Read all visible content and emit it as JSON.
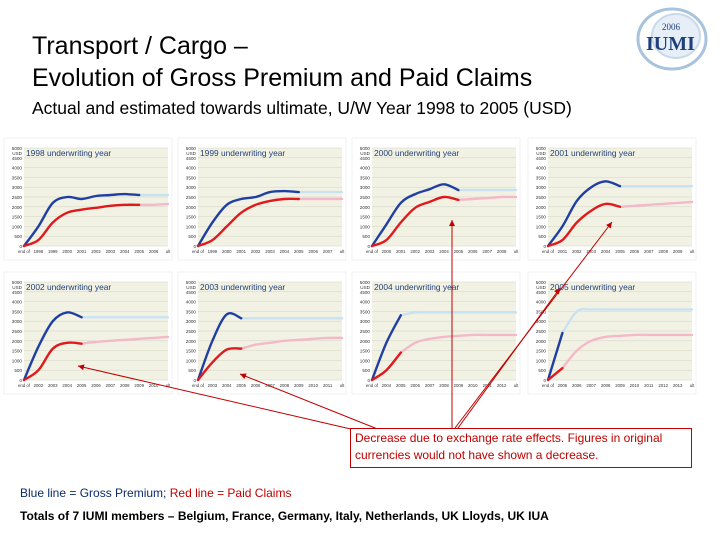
{
  "header": {
    "title_line1": "Transport / Cargo –",
    "title_line2": "Evolution of Gross Premium and Paid Claims",
    "subtitle": "Actual and estimated towards ultimate, U/W Year 1998 to 2005 (USD)"
  },
  "logo": {
    "year": "2006",
    "name": "IUMI"
  },
  "colors": {
    "gross_premium": "#1f3fa3",
    "paid_claims": "#e0191c",
    "gross_premium_estimate": "#c9e2f2",
    "paid_claims_estimate": "#f5b8c8",
    "panel_bg": "#f2f2e4",
    "callout": "#c00000"
  },
  "chart_data": [
    {
      "type": "line",
      "title": "1998 underwriting year",
      "yunit": "USD",
      "ylim": [
        0,
        5000
      ],
      "ticks": [
        0,
        500,
        1000,
        1500,
        2000,
        2500,
        3000,
        3500,
        4000,
        4500,
        5000
      ],
      "x": [
        "end of",
        "1998",
        "1999",
        "2000",
        "2001",
        "2002",
        "2003",
        "2004",
        "2005",
        "2006",
        "ult"
      ],
      "actual_until": "2005",
      "series": [
        {
          "name": "Gross Premium",
          "values": [
            0,
            1000,
            2200,
            2500,
            2400,
            2550,
            2600,
            2650,
            2600,
            2600,
            2600
          ]
        },
        {
          "name": "Paid Claims",
          "values": [
            0,
            300,
            1200,
            1700,
            1850,
            1950,
            2050,
            2100,
            2100,
            2100,
            2150
          ]
        }
      ]
    },
    {
      "type": "line",
      "title": "1999 underwriting year",
      "yunit": "USD",
      "ylim": [
        0,
        5000
      ],
      "ticks": [
        0,
        500,
        1000,
        1500,
        2000,
        2500,
        3000,
        3500,
        4000,
        4500,
        5000
      ],
      "x": [
        "end of",
        "1999",
        "2000",
        "2001",
        "2002",
        "2003",
        "2004",
        "2005",
        "2006",
        "2007",
        "ult"
      ],
      "actual_until": "2005",
      "series": [
        {
          "name": "Gross Premium",
          "values": [
            0,
            1200,
            2100,
            2400,
            2500,
            2750,
            2800,
            2750,
            2750,
            2750,
            2750
          ]
        },
        {
          "name": "Paid Claims",
          "values": [
            0,
            300,
            1000,
            1700,
            2100,
            2300,
            2400,
            2400,
            2400,
            2400,
            2400
          ]
        }
      ]
    },
    {
      "type": "line",
      "title": "2000 underwriting year",
      "yunit": "USD",
      "ylim": [
        0,
        5000
      ],
      "ticks": [
        0,
        500,
        1000,
        1500,
        2000,
        2500,
        3000,
        3500,
        4000,
        4500,
        5000
      ],
      "x": [
        "end of",
        "2000",
        "2001",
        "2002",
        "2003",
        "2004",
        "2005",
        "2006",
        "2007",
        "2008",
        "ult"
      ],
      "actual_until": "2005",
      "series": [
        {
          "name": "Gross Premium",
          "values": [
            0,
            1100,
            2200,
            2650,
            2900,
            3150,
            2850,
            2850,
            2850,
            2850,
            2850
          ]
        },
        {
          "name": "Paid Claims",
          "values": [
            0,
            300,
            1200,
            1950,
            2250,
            2500,
            2350,
            2400,
            2450,
            2500,
            2500
          ]
        }
      ]
    },
    {
      "type": "line",
      "title": "2001 underwriting year",
      "yunit": "USD",
      "ylim": [
        0,
        5000
      ],
      "ticks": [
        0,
        500,
        1000,
        1500,
        2000,
        2500,
        3000,
        3500,
        4000,
        4500,
        5000
      ],
      "x": [
        "end of",
        "2001",
        "2002",
        "2003",
        "2004",
        "2005",
        "2006",
        "2007",
        "2008",
        "2009",
        "ult"
      ],
      "actual_until": "2005",
      "series": [
        {
          "name": "Gross Premium",
          "values": [
            0,
            1000,
            2300,
            3000,
            3300,
            3050,
            3050,
            3050,
            3050,
            3050,
            3050
          ]
        },
        {
          "name": "Paid Claims",
          "values": [
            0,
            300,
            1200,
            1800,
            2150,
            2000,
            2050,
            2100,
            2150,
            2200,
            2250
          ]
        }
      ]
    },
    {
      "type": "line",
      "title": "2002 underwriting year",
      "yunit": "USD",
      "ylim": [
        0,
        5000
      ],
      "ticks": [
        0,
        500,
        1000,
        1500,
        2000,
        2500,
        3000,
        3500,
        4000,
        4500,
        5000
      ],
      "x": [
        "end of",
        "2002",
        "2003",
        "2004",
        "2005",
        "2006",
        "2007",
        "2008",
        "2009",
        "2010",
        "ult"
      ],
      "actual_until": "2005",
      "series": [
        {
          "name": "Gross Premium",
          "values": [
            0,
            1700,
            3000,
            3450,
            3200,
            3200,
            3200,
            3200,
            3200,
            3200,
            3200
          ]
        },
        {
          "name": "Paid Claims",
          "values": [
            0,
            500,
            1600,
            1900,
            1850,
            1950,
            2000,
            2050,
            2100,
            2150,
            2200
          ]
        }
      ]
    },
    {
      "type": "line",
      "title": "2003 underwriting year",
      "yunit": "USD",
      "ylim": [
        0,
        5000
      ],
      "ticks": [
        0,
        500,
        1000,
        1500,
        2000,
        2500,
        3000,
        3500,
        4000,
        4500,
        5000
      ],
      "x": [
        "end of",
        "2003",
        "2004",
        "2005",
        "2006",
        "2007",
        "2008",
        "2009",
        "2010",
        "2011",
        "ult"
      ],
      "actual_until": "2005",
      "series": [
        {
          "name": "Gross Premium",
          "values": [
            0,
            2000,
            3350,
            3150,
            3150,
            3150,
            3150,
            3150,
            3150,
            3150,
            3150
          ]
        },
        {
          "name": "Paid Claims",
          "values": [
            0,
            900,
            1550,
            1600,
            1800,
            1900,
            2000,
            2050,
            2100,
            2150,
            2150
          ]
        }
      ]
    },
    {
      "type": "line",
      "title": "2004 underwriting year",
      "yunit": "USD",
      "ylim": [
        0,
        5000
      ],
      "ticks": [
        0,
        500,
        1000,
        1500,
        2000,
        2500,
        3000,
        3500,
        4000,
        4500,
        5000
      ],
      "x": [
        "end of",
        "2004",
        "2005",
        "2006",
        "2007",
        "2008",
        "2009",
        "2010",
        "2011",
        "2012",
        "ult"
      ],
      "actual_until": "2005",
      "series": [
        {
          "name": "Gross Premium",
          "values": [
            0,
            1900,
            3300,
            3450,
            3450,
            3450,
            3450,
            3450,
            3450,
            3450,
            3450
          ]
        },
        {
          "name": "Paid Claims",
          "values": [
            0,
            500,
            1400,
            1900,
            2100,
            2200,
            2250,
            2300,
            2300,
            2300,
            2300
          ]
        }
      ]
    },
    {
      "type": "line",
      "title": "2005 underwriting year",
      "yunit": "USD",
      "ylim": [
        0,
        5000
      ],
      "ticks": [
        0,
        500,
        1000,
        1500,
        2000,
        2500,
        3000,
        3500,
        4000,
        4500,
        5000
      ],
      "x": [
        "end of",
        "2005",
        "2006",
        "2007",
        "2008",
        "2009",
        "2010",
        "2011",
        "2012",
        "2013",
        "ult"
      ],
      "actual_until": "2005",
      "series": [
        {
          "name": "Gross Premium",
          "values": [
            0,
            2400,
            3500,
            3600,
            3600,
            3600,
            3600,
            3600,
            3600,
            3600,
            3600
          ]
        },
        {
          "name": "Paid Claims",
          "values": [
            0,
            600,
            1500,
            2000,
            2200,
            2250,
            2300,
            2300,
            2300,
            2300,
            2300
          ]
        }
      ]
    }
  ],
  "callout_text": "Decrease due to exchange rate effects. Figures in original currencies would not have shown a decrease.",
  "legend": {
    "blue_text": "Blue line = Gross Premium;",
    "red_text": " Red line = Paid Claims"
  },
  "totals": "Totals of 7 IUMI members – Belgium, France, Germany, Italy, Netherlands, UK Lloyds, UK IUA"
}
